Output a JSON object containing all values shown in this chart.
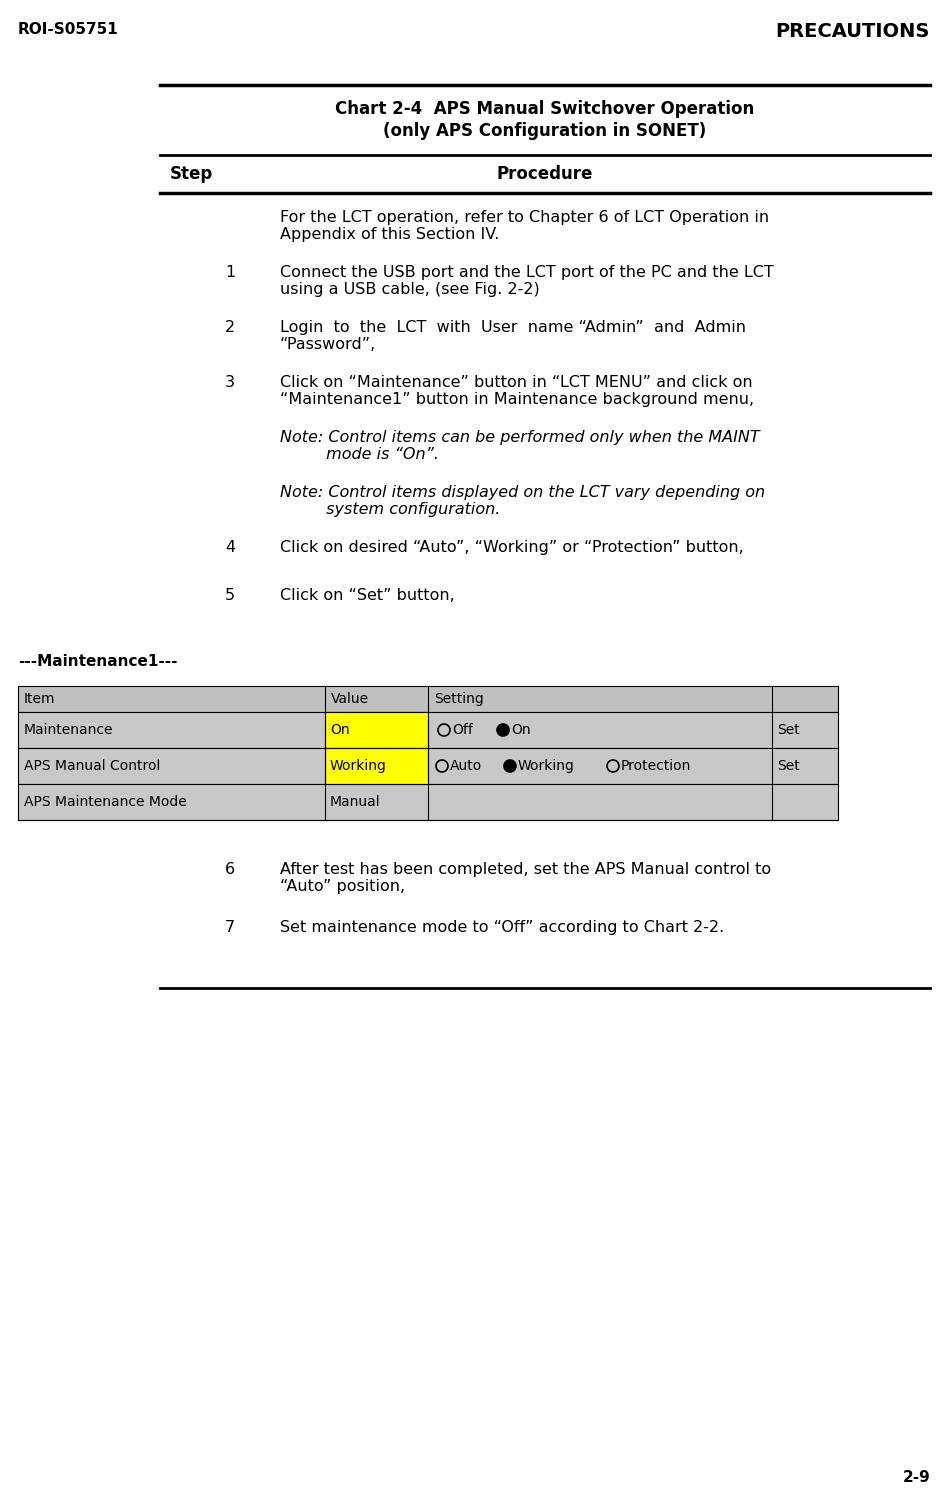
{
  "header_left": "ROI-S05751",
  "header_right": "PRECAUTIONS",
  "footer": "2-9",
  "chart_title_line1": "Chart 2-4  APS Manual Switchover Operation",
  "chart_title_line2": "(only APS Configuration in SONET)",
  "col_step": "Step",
  "col_procedure": "Procedure",
  "steps": [
    {
      "num": "",
      "text": "For the LCT operation, refer to Chapter 6 of LCT Operation in\nAppendix of this Section IV.",
      "italic": false
    },
    {
      "num": "1",
      "text": "Connect the USB port and the LCT port of the PC and the LCT\nusing a USB cable, (see Fig. 2-2)",
      "italic": false
    },
    {
      "num": "2",
      "text": "Login  to  the  LCT  with  User  name “Admin”  and  Admin\n“Password”,",
      "italic": false
    },
    {
      "num": "3",
      "text": "Click on “Maintenance” button in “LCT MENU” and click on\n“Maintenance1” button in Maintenance background menu,",
      "italic": false
    },
    {
      "num": "",
      "text": "Note: Control items can be performed only when the MAINT\n         mode is “On”.",
      "italic": true
    },
    {
      "num": "",
      "text": "Note: Control items displayed on the LCT vary depending on\n         system configuration.",
      "italic": true
    },
    {
      "num": "4",
      "text": "Click on desired “Auto”, “Working” or “Protection” button,",
      "italic": false
    },
    {
      "num": "5",
      "text": "Click on “Set” button,",
      "italic": false
    }
  ],
  "steps_after": [
    {
      "num": "6",
      "text": "After test has been completed, set the APS Manual control to\n“Auto” position,"
    },
    {
      "num": "7",
      "text": "Set maintenance mode to “Off” according to Chart 2-2."
    }
  ],
  "maint_label": "---Maintenance1---",
  "table_rows": [
    {
      "item": "Maintenance",
      "value": "On",
      "value_highlight": true,
      "has_set": true,
      "setting_type": "off_on"
    },
    {
      "item": "APS Manual Control",
      "value": "Working",
      "value_highlight": true,
      "has_set": true,
      "setting_type": "auto_working_protection"
    },
    {
      "item": "APS Maintenance Mode",
      "value": "Manual",
      "value_highlight": false,
      "has_set": false,
      "setting_type": "none"
    }
  ],
  "bg_color": "#ffffff",
  "header_bg": "#c0c0c0",
  "row_bg_odd": "#c8c8c8",
  "row_bg_even": "#c8c8c8"
}
